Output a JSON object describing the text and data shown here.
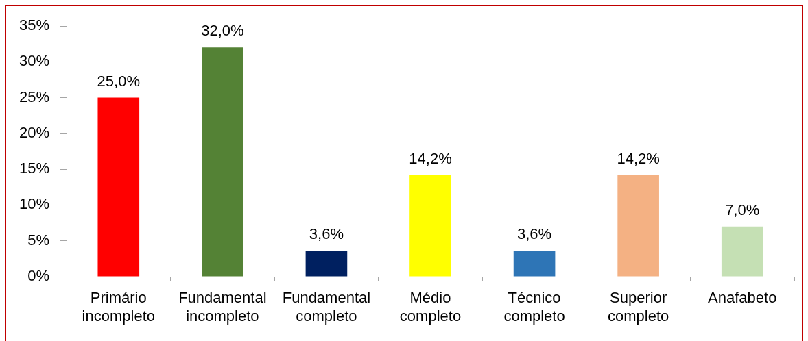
{
  "chart_data": {
    "type": "bar",
    "categories": [
      "Primário incompleto",
      "Fundamental incompleto",
      "Fundamental completo",
      "Médio completo",
      "Técnico completo",
      "Superior completo",
      "Anafabeto"
    ],
    "values": [
      25.0,
      32.0,
      3.6,
      14.2,
      3.6,
      14.2,
      7.0
    ],
    "colors": [
      "#ff0000",
      "#548235",
      "#002060",
      "#ffff00",
      "#2e75b6",
      "#f4b183",
      "#c5e0b4"
    ],
    "value_labels": [
      "25,0%",
      "32,0%",
      "3,6%",
      "14,2%",
      "3,6%",
      "14,2%",
      "7,0%"
    ],
    "ylim": [
      0,
      35
    ],
    "yticks": [
      {
        "value": 0,
        "label": "0%"
      },
      {
        "value": 5,
        "label": "5%"
      },
      {
        "value": 10,
        "label": "10%"
      },
      {
        "value": 15,
        "label": "15%"
      },
      {
        "value": 20,
        "label": "20%"
      },
      {
        "value": 25,
        "label": "25%"
      },
      {
        "value": 30,
        "label": "30%"
      },
      {
        "value": 35,
        "label": "35%"
      }
    ],
    "grid": false
  }
}
